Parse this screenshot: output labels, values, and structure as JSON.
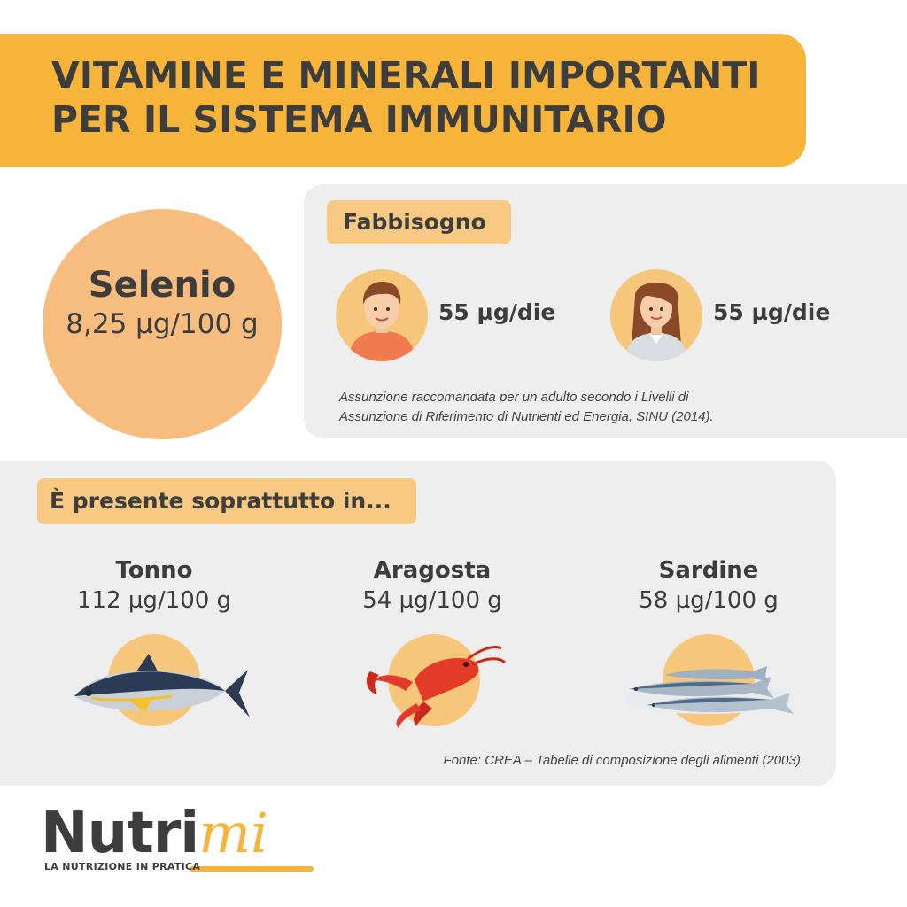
{
  "header": {
    "title_line1": "VITAMINE E MINERALI IMPORTANTI",
    "title_line2": "PER IL SISTEMA IMMUNITARIO"
  },
  "mineral": {
    "name": "Selenio",
    "amount": "8,25 µg/100 g"
  },
  "needs": {
    "tag": "Fabbisogno",
    "man_value": "55 µg/die",
    "woman_value": "55 µg/die",
    "note_line1": "Assunzione raccomandata per un adulto secondo i Livelli di",
    "note_line2": "Assunzione di Riferimento di Nutrienti ed Energia, SINU (2014)."
  },
  "foods": {
    "tag": "È presente soprattutto in...",
    "items": [
      {
        "name": "Tonno",
        "amount": "112 µg/100 g",
        "icon": "tuna-icon"
      },
      {
        "name": "Aragosta",
        "amount": "54 µg/100 g",
        "icon": "lobster-icon"
      },
      {
        "name": "Sardine",
        "amount": "58 µg/100 g",
        "icon": "sardines-icon"
      }
    ],
    "source": "Fonte: CREA – Tabelle di composizione degli alimenti (2003)."
  },
  "logo": {
    "main": "Nutri",
    "accent": "mi",
    "tagline": "LA NUTRIZIONE IN PRATICA"
  },
  "colors": {
    "banner": "#f6b53a",
    "circle": "#f6bd7f",
    "tag": "#f7c983",
    "panel": "#eeeeee",
    "text": "#3d3d3d"
  }
}
